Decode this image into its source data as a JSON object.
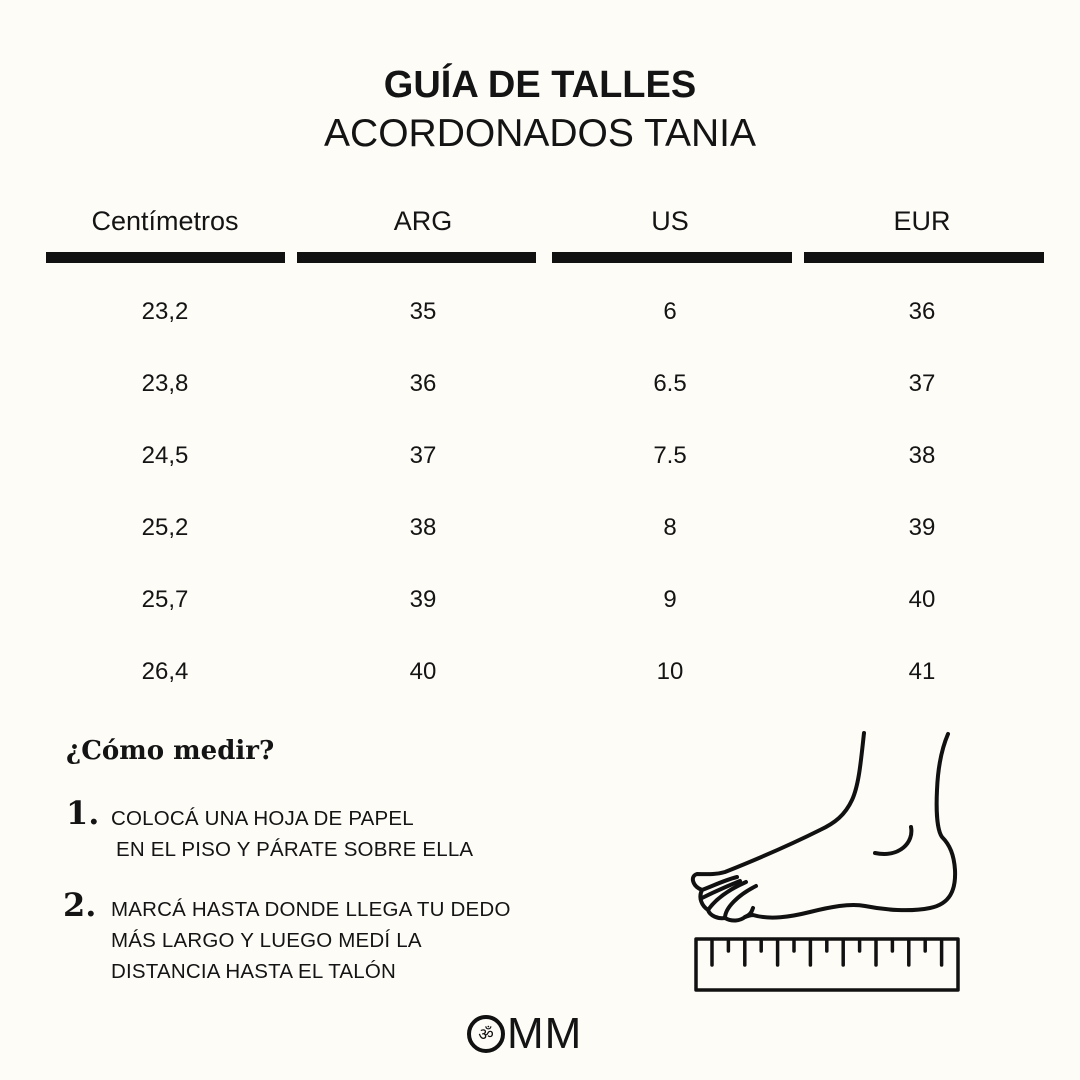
{
  "header": {
    "title": "GUÍA DE TALLES",
    "subtitle": "ACORDONADOS TANIA"
  },
  "table": {
    "columns": [
      "Centímetros",
      "ARG",
      "US",
      "EUR"
    ],
    "rows": [
      [
        "23,2",
        "35",
        "6",
        "36"
      ],
      [
        "23,8",
        "36",
        "6.5",
        "37"
      ],
      [
        "24,5",
        "37",
        "7.5",
        "38"
      ],
      [
        "25,2",
        "38",
        "8",
        "39"
      ],
      [
        "25,7",
        "39",
        "9",
        "40"
      ],
      [
        "26,4",
        "40",
        "10",
        "41"
      ]
    ]
  },
  "instructions": {
    "heading": "¿Cómo medir?",
    "steps": [
      {
        "number": "1.",
        "lines": [
          "COLOCÁ UNA HOJA DE PAPEL",
          "EN EL PISO Y PÁRATE SOBRE ELLA"
        ]
      },
      {
        "number": "2.",
        "lines": [
          "MARCÁ HASTA DONDE LLEGA TU DEDO",
          "MÁS LARGO Y LUEGO MEDÍ LA",
          "DISTANCIA HASTA EL TALÓN"
        ]
      }
    ]
  },
  "illustration": {
    "icon": "foot-on-ruler-icon"
  },
  "logo": {
    "text": "OMM",
    "icon": "om-symbol-icon"
  },
  "colors": {
    "background": "#fdfcf7",
    "ink": "#141414"
  }
}
